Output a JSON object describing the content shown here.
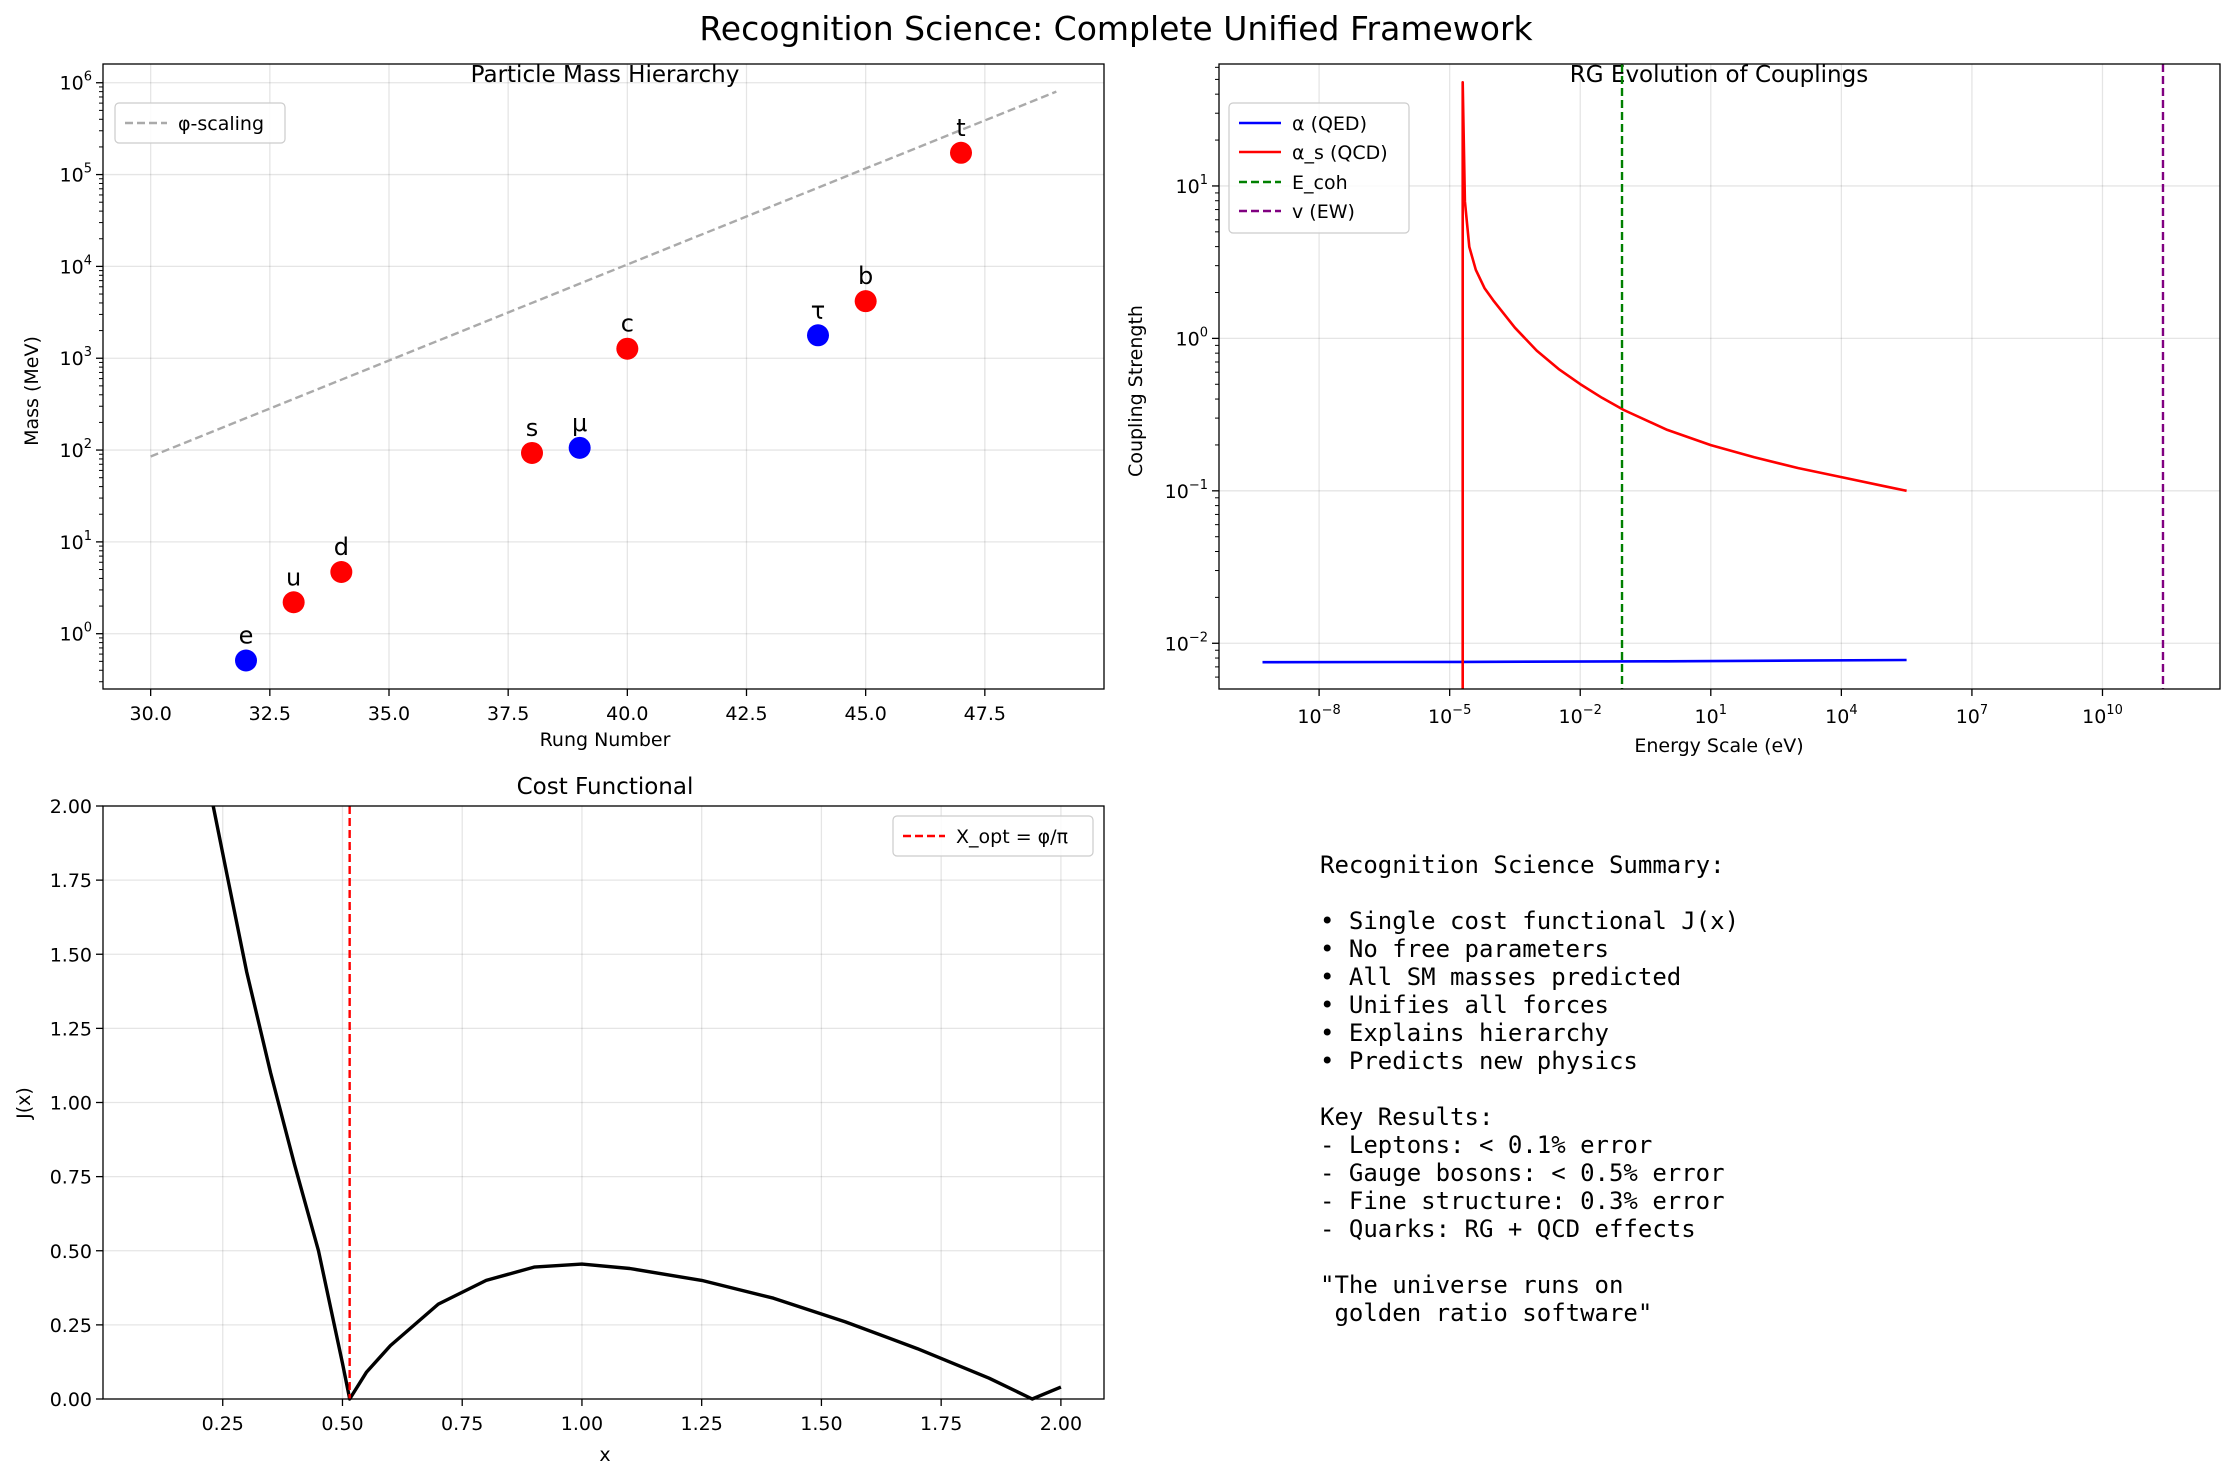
{
  "figure": {
    "title": "Recognition Science: Complete Unified Framework"
  },
  "chart_data": [
    {
      "type": "scatter",
      "title": "Particle Mass Hierarchy",
      "xlabel": "Rung Number",
      "ylabel": "Mass (MeV)",
      "xlim": [
        29.0,
        50.0
      ],
      "ylim": [
        0.25,
        1600000
      ],
      "yscale": "log",
      "grid": true,
      "legend_position": "upper-left",
      "xticks": [
        "30.0",
        "32.5",
        "35.0",
        "37.5",
        "40.0",
        "42.5",
        "45.0",
        "47.5"
      ],
      "xtick_values": [
        30.0,
        32.5,
        35.0,
        37.5,
        40.0,
        42.5,
        45.0,
        47.5
      ],
      "ytick_exponents": [
        "0",
        "1",
        "2",
        "3",
        "4",
        "5",
        "6"
      ],
      "legend": [
        {
          "label": "φ-scaling",
          "color": "#aaaaaa",
          "style": "dashed"
        }
      ],
      "reference_line": {
        "name": "φ-scaling",
        "x": [
          30,
          49
        ],
        "y": [
          85,
          800000
        ],
        "color": "#aaaaaa"
      },
      "points": [
        {
          "label": "e",
          "x": 32,
          "y": 0.511,
          "color": "#0000ff"
        },
        {
          "label": "u",
          "x": 33,
          "y": 2.2,
          "color": "#ff0000"
        },
        {
          "label": "d",
          "x": 34,
          "y": 4.7,
          "color": "#ff0000"
        },
        {
          "label": "s",
          "x": 38,
          "y": 93,
          "color": "#ff0000"
        },
        {
          "label": "μ",
          "x": 39,
          "y": 105.7,
          "color": "#0000ff"
        },
        {
          "label": "c",
          "x": 40,
          "y": 1270,
          "color": "#ff0000"
        },
        {
          "label": "τ",
          "x": 44,
          "y": 1777,
          "color": "#0000ff"
        },
        {
          "label": "b",
          "x": 45,
          "y": 4180,
          "color": "#ff0000"
        },
        {
          "label": "t",
          "x": 47,
          "y": 172700,
          "color": "#ff0000"
        }
      ]
    },
    {
      "type": "line",
      "title": "RG Evolution of Couplings",
      "xlabel": "Energy Scale (eV)",
      "ylabel": "Coupling Strength",
      "xscale": "log",
      "yscale": "log",
      "xlim_log10": [
        -10.3,
        12.7
      ],
      "ylim_log10": [
        -2.3,
        1.8
      ],
      "grid": true,
      "legend_position": "upper-left",
      "xtick_exponents": [
        "−8",
        "−5",
        "−2",
        "1",
        "4",
        "7",
        "10"
      ],
      "xtick_values": [
        -8,
        -5,
        -2,
        1,
        4,
        7,
        10
      ],
      "ytick_exponents": [
        "−2",
        "−1",
        "0",
        "1"
      ],
      "ytick_values": [
        -2,
        -1,
        0,
        1
      ],
      "series": [
        {
          "name": "α (QED)",
          "color": "#0000ff",
          "style": "solid",
          "log10_x": [
            -9.3,
            -4.7,
            0,
            3,
            5.5
          ],
          "log10_y": [
            -2.124,
            -2.122,
            -2.118,
            -2.114,
            -2.11
          ]
        },
        {
          "name": "α_s (QCD)",
          "color": "#ff0000",
          "style": "solid",
          "log10_x": [
            -4.7,
            -4.7,
            -4.69,
            -4.65,
            -4.6,
            -4.55,
            -4.4,
            -4.2,
            -4.0,
            -3.5,
            -3.0,
            -2.5,
            -2.0,
            -1.5,
            -1.0,
            0.0,
            1.0,
            2.0,
            3.0,
            4.0,
            5.0,
            5.5
          ],
          "log10_y": [
            -2.3,
            1.68,
            1.5,
            0.9,
            0.75,
            0.6,
            0.45,
            0.33,
            0.25,
            0.07,
            -0.08,
            -0.2,
            -0.3,
            -0.39,
            -0.47,
            -0.6,
            -0.7,
            -0.78,
            -0.85,
            -0.91,
            -0.97,
            -1.0
          ]
        },
        {
          "name": "E_coh",
          "color": "#008000",
          "style": "dashed",
          "vertical_at_log10_x": -1.04
        },
        {
          "name": "v (EW)",
          "color": "#800080",
          "style": "dashed",
          "vertical_at_log10_x": 11.39
        }
      ]
    },
    {
      "type": "line",
      "title": "Cost Functional",
      "xlabel": "x",
      "ylabel": "J(x)",
      "xlim": [
        0.0,
        2.09
      ],
      "ylim": [
        0.0,
        2.0
      ],
      "grid": true,
      "legend_position": "upper-right",
      "xticks": [
        "0.25",
        "0.50",
        "0.75",
        "1.00",
        "1.25",
        "1.50",
        "1.75",
        "2.00"
      ],
      "xtick_values": [
        0.25,
        0.5,
        0.75,
        1.0,
        1.25,
        1.5,
        1.75,
        2.0
      ],
      "yticks": [
        "0.00",
        "0.25",
        "0.50",
        "0.75",
        "1.00",
        "1.25",
        "1.50",
        "1.75",
        "2.00"
      ],
      "ytick_values": [
        0.0,
        0.25,
        0.5,
        0.75,
        1.0,
        1.25,
        1.5,
        1.75,
        2.0
      ],
      "series": [
        {
          "name": "J(x)",
          "color": "#000000",
          "style": "solid",
          "function": "abs(0.5*(x + 1/x) - 1/(phi/pi) + 0.0 * 0) scaled",
          "x": [
            0.23,
            0.26,
            0.3,
            0.35,
            0.4,
            0.45,
            0.5,
            0.515,
            0.55,
            0.6,
            0.7,
            0.8,
            0.9,
            1.0,
            1.1,
            1.25,
            1.4,
            1.55,
            1.7,
            1.85,
            1.94,
            2.0
          ],
          "y": [
            2.05,
            1.76,
            1.44,
            1.1,
            0.79,
            0.5,
            0.12,
            0.0,
            0.09,
            0.18,
            0.32,
            0.4,
            0.445,
            0.455,
            0.44,
            0.4,
            0.34,
            0.26,
            0.17,
            0.07,
            0.0,
            0.04
          ]
        },
        {
          "name": "X_opt = φ/π",
          "color": "#ff0000",
          "style": "dashed",
          "vertical_at_x": 0.515
        }
      ]
    }
  ],
  "summary": {
    "title": "Recognition Science Summary:",
    "bullets": [
      "• Single cost functional J(x)",
      "• No free parameters",
      "• All SM masses predicted",
      "• Unifies all forces",
      "• Explains hierarchy",
      "• Predicts new physics"
    ],
    "results_title": "Key Results:",
    "results": [
      "- Leptons: < 0.1% error",
      "- Gauge bosons: < 0.5% error",
      "- Fine structure: 0.3% error",
      "- Quarks: RG + QCD effects"
    ],
    "quote_line1": "\"The universe runs on",
    "quote_line2": " golden ratio software\""
  }
}
